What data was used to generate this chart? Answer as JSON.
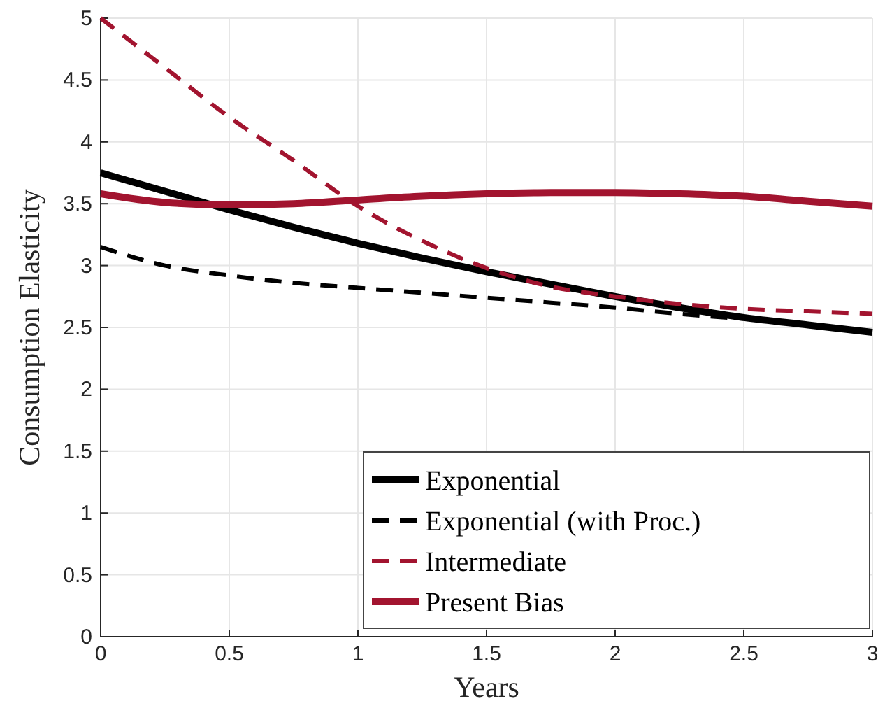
{
  "chart_data": {
    "type": "line",
    "xlabel": "Years",
    "ylabel": "Consumption Elasticity",
    "x": [
      0,
      0.25,
      0.5,
      0.75,
      1,
      1.25,
      1.5,
      1.75,
      2,
      2.25,
      2.5,
      2.75,
      3
    ],
    "series": [
      {
        "name": "Exponential",
        "color": "#000000",
        "line_style": "solid",
        "values": [
          3.75,
          3.6,
          3.45,
          3.31,
          3.18,
          3.06,
          2.95,
          2.85,
          2.75,
          2.66,
          2.58,
          2.52,
          2.46
        ]
      },
      {
        "name": "Exponential (with Proc.)",
        "color": "#000000",
        "line_style": "dashed",
        "values": [
          3.15,
          3.0,
          2.92,
          2.86,
          2.82,
          2.78,
          2.74,
          2.7,
          2.66,
          2.61,
          2.57,
          null,
          null
        ]
      },
      {
        "name": "Intermediate",
        "color": "#a2142f",
        "line_style": "dashed",
        "values": [
          5.0,
          4.6,
          4.2,
          3.85,
          3.48,
          3.2,
          2.98,
          2.83,
          2.75,
          2.69,
          2.65,
          2.63,
          2.61
        ]
      },
      {
        "name": "Present Bias",
        "color": "#a2142f",
        "line_style": "solid",
        "values": [
          3.58,
          3.51,
          3.49,
          3.5,
          3.53,
          3.56,
          3.58,
          3.59,
          3.59,
          3.58,
          3.56,
          3.52,
          3.48
        ]
      }
    ],
    "xlim": [
      0,
      3
    ],
    "xticks": [
      0,
      0.5,
      1,
      1.5,
      2,
      2.5,
      3
    ],
    "ylim": [
      0,
      5
    ],
    "yticks": [
      0,
      0.5,
      1,
      1.5,
      2,
      2.5,
      3,
      3.5,
      4,
      4.5,
      5
    ],
    "grid": true,
    "legend": "bottom right"
  }
}
